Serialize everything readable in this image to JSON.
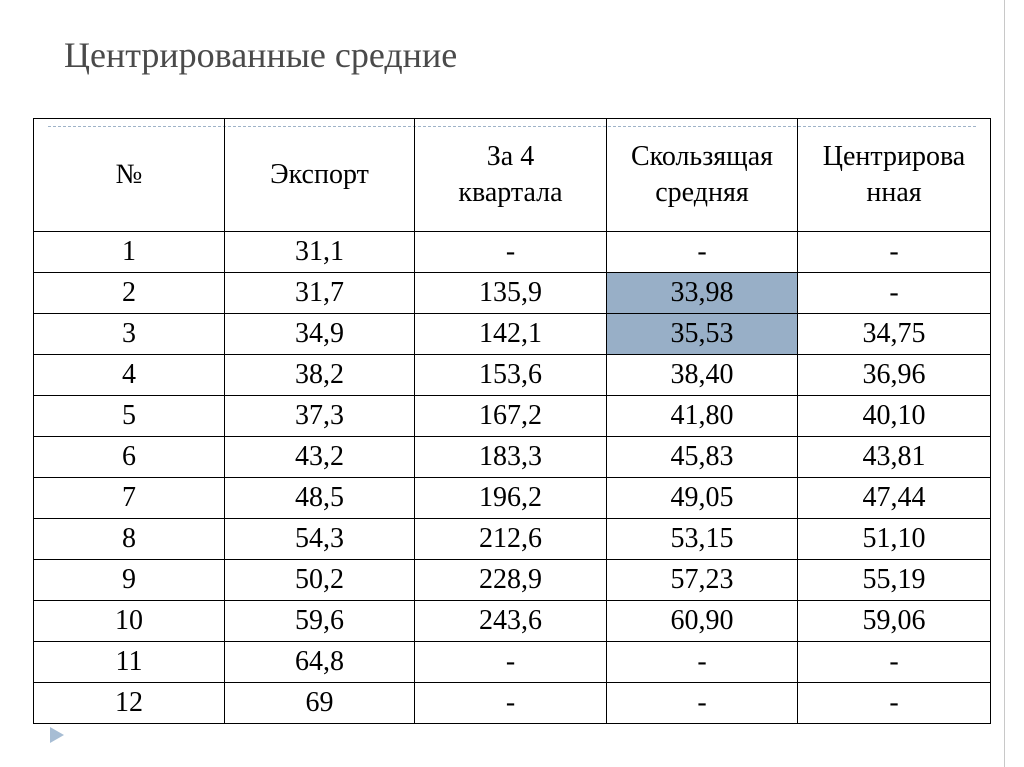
{
  "title": "Центрированные средние",
  "table": {
    "headers": [
      "№",
      "Экспорт",
      "За 4\nквартала",
      "Скользящая\nсредняя",
      "Центрирова\nнная"
    ],
    "rows": [
      [
        "1",
        "31,1",
        "-",
        "-",
        "-"
      ],
      [
        "2",
        "31,7",
        "135,9",
        "33,98",
        "-"
      ],
      [
        "3",
        "34,9",
        "142,1",
        "35,53",
        "34,75"
      ],
      [
        "4",
        "38,2",
        "153,6",
        "38,40",
        "36,96"
      ],
      [
        "5",
        "37,3",
        "167,2",
        "41,80",
        "40,10"
      ],
      [
        "6",
        "43,2",
        "183,3",
        "45,83",
        "43,81"
      ],
      [
        "7",
        "48,5",
        "196,2",
        "49,05",
        "47,44"
      ],
      [
        "8",
        "54,3",
        "212,6",
        "53,15",
        "51,10"
      ],
      [
        "9",
        "50,2",
        "228,9",
        "57,23",
        "55,19"
      ],
      [
        "10",
        "59,6",
        "243,6",
        "60,90",
        "59,06"
      ],
      [
        "11",
        "64,8",
        "-",
        "-",
        "-"
      ],
      [
        "12",
        "69",
        "-",
        "-",
        "-"
      ]
    ],
    "highlighted_cells": [
      [
        1,
        3
      ],
      [
        2,
        3
      ]
    ],
    "highlight_color": "#98afc7"
  }
}
